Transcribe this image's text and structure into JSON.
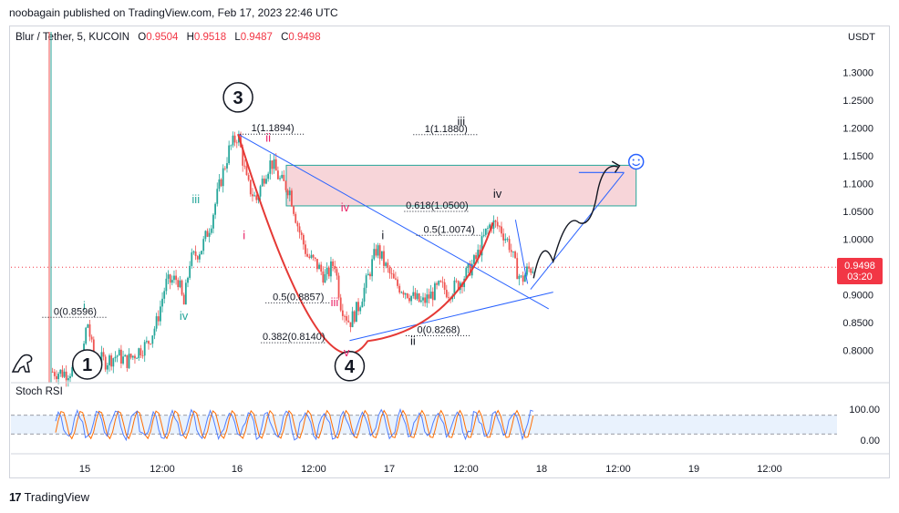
{
  "header": {
    "published_by": "noobagain published on TradingView.com, Feb 17, 2023 22:46 UTC"
  },
  "symbol": {
    "name": "Blur / Tether, 5, KUCOIN",
    "open_label": "O",
    "open": "0.9504",
    "high_label": "H",
    "high": "0.9518",
    "low_label": "L",
    "low": "0.9487",
    "close_label": "C",
    "close": "0.9498"
  },
  "price_axis": {
    "currency": "USDT",
    "last_price": "0.9498",
    "countdown": "03:20"
  },
  "indicator": {
    "name": "Stoch RSI"
  },
  "footer": {
    "brand": "TradingView"
  },
  "colors": {
    "up": "#26a69a",
    "down": "#ef5350",
    "trendline": "#2962ff",
    "curve": "#e53935",
    "zone_fill": "#f4c7cc",
    "zone_border": "#26a69a",
    "rsi_k": "#2962ff",
    "rsi_d": "#ff6d00",
    "price_tag": "#f23645"
  },
  "chart_data": [
    {
      "type": "candlestick",
      "x_unit": "time",
      "x_ticks": [
        "15",
        "12:00",
        "16",
        "12:00",
        "17",
        "12:00",
        "18",
        "12:00",
        "19",
        "12:00"
      ],
      "y_ticks": [
        "1.3000",
        "1.2500",
        "1.2000",
        "1.1500",
        "1.1000",
        "1.0500",
        "1.0000",
        "0.9000",
        "0.8500",
        "0.8000"
      ],
      "ylim": [
        0.752,
        1.34
      ],
      "path_points": [
        [
          0.0,
          0.762
        ],
        [
          1.0,
          0.76
        ],
        [
          2.0,
          0.772
        ],
        [
          2.4,
          0.855
        ],
        [
          2.8,
          0.79
        ],
        [
          3.6,
          0.78
        ],
        [
          4.4,
          0.792
        ],
        [
          5.0,
          0.78
        ],
        [
          5.8,
          0.8
        ],
        [
          6.4,
          0.812
        ],
        [
          7.0,
          0.85
        ],
        [
          7.6,
          0.92
        ],
        [
          8.4,
          0.93
        ],
        [
          8.8,
          0.88
        ],
        [
          9.2,
          0.96
        ],
        [
          10.0,
          0.985
        ],
        [
          10.6,
          1.03
        ],
        [
          11.2,
          1.1
        ],
        [
          11.8,
          1.16
        ],
        [
          12.4,
          1.189
        ],
        [
          13.0,
          1.1
        ],
        [
          13.6,
          1.07
        ],
        [
          14.2,
          1.12
        ],
        [
          14.6,
          1.14
        ],
        [
          15.2,
          1.105
        ],
        [
          15.8,
          1.09
        ],
        [
          16.4,
          1.02
        ],
        [
          17.0,
          0.97
        ],
        [
          17.6,
          0.955
        ],
        [
          18.2,
          0.93
        ],
        [
          18.8,
          0.96
        ],
        [
          19.2,
          0.885
        ],
        [
          19.8,
          0.85
        ],
        [
          20.4,
          0.88
        ],
        [
          21.0,
          0.93
        ],
        [
          21.6,
          0.985
        ],
        [
          22.2,
          0.95
        ],
        [
          22.8,
          0.92
        ],
        [
          23.4,
          0.91
        ],
        [
          24.0,
          0.895
        ],
        [
          24.6,
          0.885
        ],
        [
          25.2,
          0.9
        ],
        [
          25.8,
          0.915
        ],
        [
          26.4,
          0.905
        ],
        [
          27.0,
          0.92
        ],
        [
          27.6,
          0.94
        ],
        [
          28.2,
          0.965
        ],
        [
          28.8,
          1.01
        ],
        [
          29.2,
          1.03
        ],
        [
          29.8,
          1.02
        ],
        [
          30.4,
          0.99
        ],
        [
          30.8,
          0.95
        ],
        [
          31.2,
          0.925
        ],
        [
          31.6,
          0.945
        ],
        [
          32.0,
          0.9498
        ]
      ],
      "annotations": {
        "wave_labels": [
          {
            "text": "3",
            "circled": true,
            "x": 12.4,
            "y": 1.255
          },
          {
            "text": "4",
            "circled": true,
            "x": 19.8,
            "y": 0.772
          },
          {
            "text": "1",
            "circled": true,
            "x": 2.4,
            "y": 0.775
          },
          {
            "text": "i",
            "color": "#26a69a",
            "x": 2.2,
            "y": 0.873
          },
          {
            "text": "iii",
            "color": "#26a69a",
            "x": 9.6,
            "y": 1.065
          },
          {
            "text": "iv",
            "color": "#26a69a",
            "x": 8.8,
            "y": 0.855
          },
          {
            "text": "ii",
            "color": "#e91e63",
            "x": 14.4,
            "y": 1.175
          },
          {
            "text": "i",
            "color": "#e91e63",
            "x": 12.8,
            "y": 1.0
          },
          {
            "text": "iii",
            "color": "#e91e63",
            "x": 18.8,
            "y": 0.88
          },
          {
            "text": "iv",
            "color": "#e91e63",
            "x": 19.5,
            "y": 1.05
          },
          {
            "text": "v",
            "color": "#e91e63",
            "x": 19.6,
            "y": 0.79
          },
          {
            "text": "i",
            "color": "#131722",
            "x": 22.0,
            "y": 1.0
          },
          {
            "text": "ii",
            "color": "#131722",
            "x": 24.0,
            "y": 0.81
          },
          {
            "text": "iii",
            "color": "#131722",
            "x": 27.2,
            "y": 1.205
          },
          {
            "text": "iv",
            "color": "#131722",
            "x": 29.6,
            "y": 1.075
          }
        ],
        "fib_labels": [
          {
            "text": "1(1.1894)",
            "x": 14.7,
            "y": 1.189
          },
          {
            "text": "1(1.1880)",
            "x": 26.2,
            "y": 1.188
          },
          {
            "text": "0.618(1.0500)",
            "x": 25.6,
            "y": 1.05
          },
          {
            "text": "0.5(1.0074)",
            "x": 26.4,
            "y": 1.007
          },
          {
            "text": "0.5(0.8857)",
            "x": 16.4,
            "y": 0.8857
          },
          {
            "text": "0(0.8596)",
            "x": 1.6,
            "y": 0.8596
          },
          {
            "text": "0(0.8268)",
            "x": 25.7,
            "y": 0.8268
          },
          {
            "text": "0.382(0.8140)",
            "x": 16.1,
            "y": 0.814
          }
        ],
        "zone": {
          "x0": 15.6,
          "x1": 38.8,
          "y0": 1.06,
          "y1": 1.133
        },
        "target_line": {
          "x0": 35.0,
          "x1": 38.0,
          "y": 1.12
        }
      }
    },
    {
      "type": "line",
      "name": "Stoch RSI",
      "y_ticks": [
        "100.00",
        "0.00"
      ],
      "ylim": [
        -20,
        120
      ],
      "bands": [
        80,
        20
      ]
    }
  ]
}
